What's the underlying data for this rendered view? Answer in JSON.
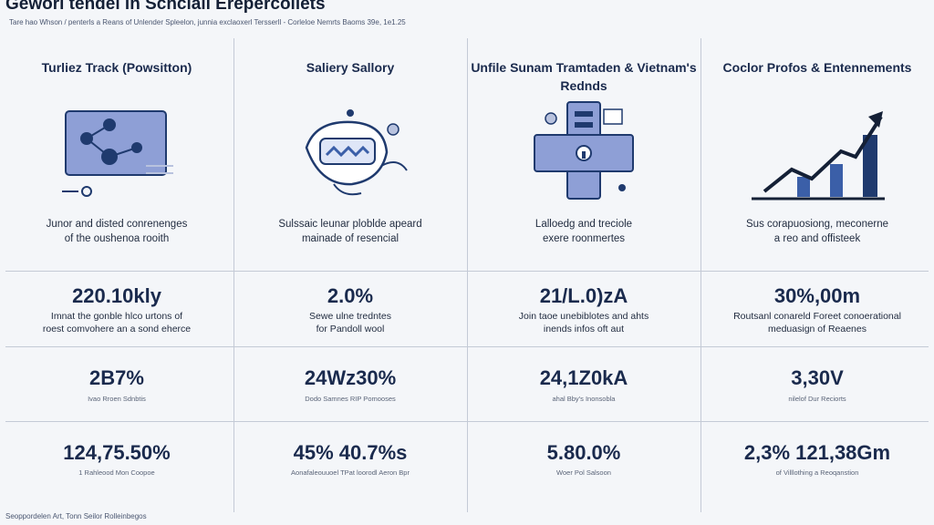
{
  "header": {
    "title": "Gewori tendel in Schciall Erepercoliets",
    "subtitle": "Tare hao Whson / penterls a Reans of Unlender Spleelon, junnia exclaoxerl Tersserll - Corleloe Nemrts Baoms 39e, 1e1.25"
  },
  "columns": [
    {
      "title": "Turliez Track (Powsitton)",
      "icon": "network-diagram-icon",
      "desc": [
        "Junor and disted conrenenges",
        "of the oushenoa rooith"
      ],
      "metrics": [
        {
          "value": "220.10kly",
          "desc": [
            "Imnat the gonble hlco urtons of",
            "roest comvohere an a sond eherce"
          ]
        },
        {
          "value": "2B7%",
          "desc": [
            "Ivao Rroen Sdnbtis"
          ]
        },
        {
          "value": "124,75.50%",
          "desc": [
            "1 Rahleood Mon Coopoe"
          ]
        }
      ]
    },
    {
      "title": "Saliery Sallory",
      "icon": "salary-hand-icon",
      "desc": [
        "Sulssaic leunar ploblde apeard",
        "mainade of resencial"
      ],
      "metrics": [
        {
          "value": "2.0%",
          "desc": [
            "Sewe ulne tredntes",
            "for Pandoll wool"
          ]
        },
        {
          "value": "24Wz30%",
          "desc": [
            "Dodo Samnes RIP Pomooses"
          ]
        },
        {
          "value": "45% 40.7%s",
          "desc": [
            "Aonafaleouuoel TPat loorodl Aeron Bpr"
          ]
        }
      ]
    },
    {
      "title": "Unfile Sunam Tramtaden & Vietnam's Rednds",
      "icon": "building-lock-icon",
      "desc": [
        "Lalloedg and treciole",
        "exere roonmertes"
      ],
      "metrics": [
        {
          "value": "21/L.0)zA",
          "desc": [
            "Join taoe unebiblotes and ahts",
            "inends infos oft aut"
          ]
        },
        {
          "value": "24,1Z0kA",
          "desc": [
            "ahal Bby's Inonsobla"
          ]
        },
        {
          "value": "5.80.0%",
          "desc": [
            "Woer Pol Salsoon"
          ]
        }
      ]
    },
    {
      "title": "Coclor Profos & Entennements",
      "icon": "trend-chart-icon",
      "desc": [
        "Sus corapuosiong, meconerne",
        "a reo and offisteek"
      ],
      "metrics": [
        {
          "value": "30%,00m",
          "desc": [
            "Routsanl conareld Foreet conoerational",
            "meduasign of Reaenes"
          ]
        },
        {
          "value": "3,30V",
          "desc": [
            "nilelof Dur Reciorts"
          ]
        },
        {
          "value": "2,3% 121,38Gm",
          "desc": [
            "of Villlothing a Reoqanstion"
          ]
        }
      ]
    }
  ],
  "footer": "Seoppordelen Art,  Tonn Seilor Rolleinbegos",
  "colors": {
    "navy": "#1f3a6e",
    "accent": "#3b5fa8",
    "icon_fill": "#8e9fd6"
  }
}
